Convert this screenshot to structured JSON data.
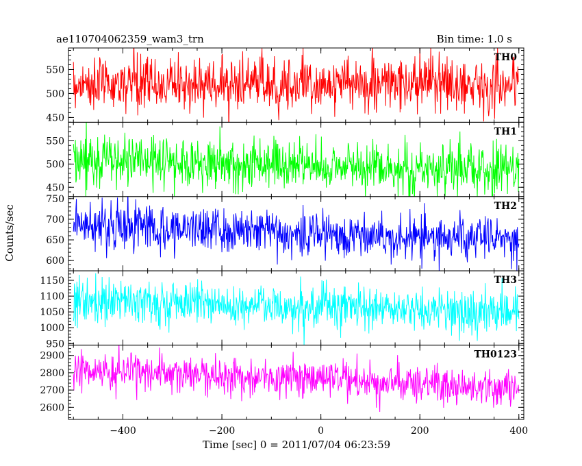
{
  "chart_data": {
    "type": "line",
    "title": "ae110704062359_wam3_trn",
    "subtitle": "Bin time: 1.0 s",
    "xlabel": "Time [sec] 0 = 2011/07/04 06:23:59",
    "ylabel": "Counts/sec",
    "xlim": [
      -510,
      410
    ],
    "xticks": [
      -400,
      -200,
      0,
      200,
      400
    ],
    "panels": [
      {
        "name": "TH0",
        "color": "#ff0000",
        "ylim": [
          440,
          595
        ],
        "yticks": [
          450,
          500,
          550
        ],
        "mean": 520,
        "spread": 28,
        "trend": 0
      },
      {
        "name": "TH1",
        "color": "#00ff00",
        "ylim": [
          430,
          590
        ],
        "yticks": [
          450,
          500,
          550
        ],
        "mean": 498,
        "spread": 28,
        "trend": -25
      },
      {
        "name": "TH2",
        "color": "#0000ff",
        "ylim": [
          575,
          755
        ],
        "yticks": [
          600,
          650,
          700,
          750
        ],
        "mean": 668,
        "spread": 28,
        "trend": -40
      },
      {
        "name": "TH3",
        "color": "#00ffff",
        "ylim": [
          945,
          1180
        ],
        "yticks": [
          950,
          1000,
          1050,
          1100,
          1150
        ],
        "mean": 1068,
        "spread": 35,
        "trend": -45
      },
      {
        "name": "TH0123",
        "color": "#ff00ff",
        "ylim": [
          2530,
          2960
        ],
        "yticks": [
          2600,
          2700,
          2800,
          2900
        ],
        "mean": 2765,
        "spread": 55,
        "trend": -110
      }
    ]
  }
}
